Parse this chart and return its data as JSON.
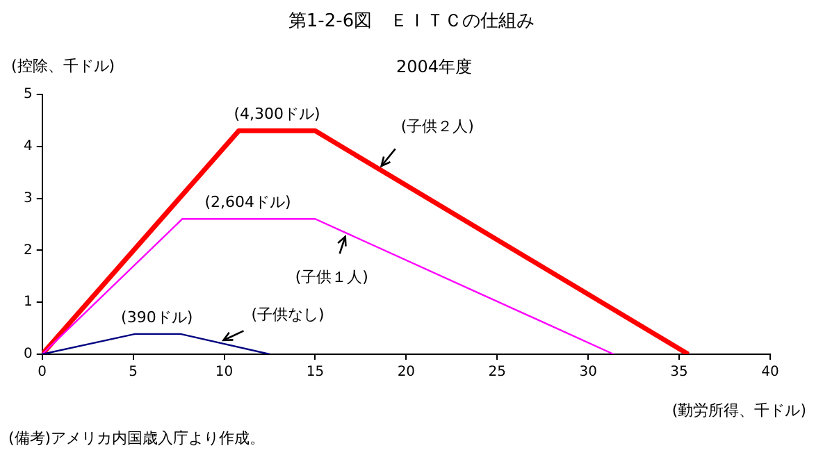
{
  "chart_data": {
    "type": "line",
    "title": "第1-2-6図　ＥＩＴＣの仕組み",
    "subtitle": "2004年度",
    "xlabel": "(勤労所得、千ドル)",
    "ylabel": "(控除、千ドル)",
    "series": [
      {
        "name": "(子供なし)",
        "color": "#000080",
        "x": [
          0,
          5.1,
          7.6,
          12.5
        ],
        "values": [
          0,
          0.39,
          0.39,
          0
        ]
      },
      {
        "name": "(子供１人)",
        "color": "#ff00ff",
        "x": [
          0,
          7.7,
          15,
          31.4
        ],
        "values": [
          0,
          2.604,
          2.604,
          0
        ]
      },
      {
        "name": "(子供２人)",
        "color": "#ff0000",
        "x": [
          0,
          10.8,
          15,
          35.5
        ],
        "values": [
          0,
          4.3,
          4.3,
          0
        ]
      }
    ],
    "xlim": [
      0,
      40
    ],
    "xticks": [
      0,
      5,
      10,
      15,
      20,
      25,
      30,
      35,
      40
    ],
    "ylim": [
      0,
      5
    ],
    "yticks": [
      0,
      1,
      2,
      3,
      4,
      5
    ],
    "grid": false,
    "legend": false,
    "marker": "none",
    "line_style": "solid",
    "annotations": [
      {
        "text": "(390ドル)",
        "x": 6.3,
        "y": 0.39
      },
      {
        "text": "(2,604ドル)",
        "x": 11.3,
        "y": 2.604
      },
      {
        "text": "(4,300ドル)",
        "x": 12.9,
        "y": 4.3
      },
      "(備考)アメリカ内国歳入庁より作成。"
    ]
  }
}
